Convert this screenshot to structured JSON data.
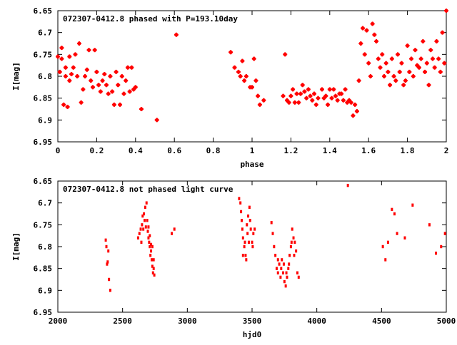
{
  "chart_data": [
    {
      "type": "scatter",
      "title": "072307-0412.8 phased with P=193.10day",
      "xlabel": "phase",
      "ylabel": "I[mag]",
      "xlim": [
        0,
        2
      ],
      "ylim": [
        6.65,
        6.95
      ],
      "y_inverted": true,
      "grid": false,
      "marker_color": "#ff0000",
      "x_ticks": [
        0,
        0.2,
        0.4,
        0.6,
        0.8,
        1,
        1.2,
        1.4,
        1.6,
        1.8,
        2
      ],
      "x_tick_labels": [
        "0",
        "0.2",
        "0.4",
        "0.6",
        "0.8",
        "1",
        "1.2",
        "1.4",
        "1.6",
        "1.8",
        "2"
      ],
      "y_ticks": [
        6.65,
        6.7,
        6.75,
        6.8,
        6.85,
        6.9,
        6.95
      ],
      "y_tick_labels": [
        "6.65",
        "6.7",
        "6.75",
        "6.8",
        "6.85",
        "6.9",
        "6.95"
      ],
      "points": [
        [
          0.0,
          6.755
        ],
        [
          0.01,
          6.79
        ],
        [
          0.02,
          6.76
        ],
        [
          0.02,
          6.735
        ],
        [
          0.03,
          6.865
        ],
        [
          0.04,
          6.8
        ],
        [
          0.04,
          6.78
        ],
        [
          0.05,
          6.87
        ],
        [
          0.06,
          6.81
        ],
        [
          0.06,
          6.755
        ],
        [
          0.07,
          6.795
        ],
        [
          0.08,
          6.78
        ],
        [
          0.09,
          6.75
        ],
        [
          0.1,
          6.8
        ],
        [
          0.11,
          6.725
        ],
        [
          0.12,
          6.86
        ],
        [
          0.13,
          6.83
        ],
        [
          0.14,
          6.8
        ],
        [
          0.15,
          6.785
        ],
        [
          0.16,
          6.74
        ],
        [
          0.17,
          6.81
        ],
        [
          0.18,
          6.825
        ],
        [
          0.19,
          6.74
        ],
        [
          0.2,
          6.79
        ],
        [
          0.21,
          6.82
        ],
        [
          0.22,
          6.835
        ],
        [
          0.23,
          6.81
        ],
        [
          0.24,
          6.795
        ],
        [
          0.25,
          6.82
        ],
        [
          0.26,
          6.84
        ],
        [
          0.27,
          6.8
        ],
        [
          0.28,
          6.835
        ],
        [
          0.29,
          6.865
        ],
        [
          0.3,
          6.79
        ],
        [
          0.31,
          6.82
        ],
        [
          0.32,
          6.865
        ],
        [
          0.33,
          6.8
        ],
        [
          0.34,
          6.84
        ],
        [
          0.35,
          6.81
        ],
        [
          0.36,
          6.78
        ],
        [
          0.37,
          6.835
        ],
        [
          0.38,
          6.78
        ],
        [
          0.39,
          6.83
        ],
        [
          0.4,
          6.825
        ],
        [
          0.43,
          6.875
        ],
        [
          0.51,
          6.9
        ],
        [
          0.61,
          6.705
        ],
        [
          0.89,
          6.745
        ],
        [
          0.91,
          6.78
        ],
        [
          0.93,
          6.79
        ],
        [
          0.94,
          6.8
        ],
        [
          0.95,
          6.765
        ],
        [
          0.96,
          6.81
        ],
        [
          0.97,
          6.8
        ],
        [
          0.99,
          6.825
        ],
        [
          1.0,
          6.825
        ],
        [
          1.01,
          6.76
        ],
        [
          1.02,
          6.81
        ],
        [
          1.03,
          6.845
        ],
        [
          1.04,
          6.865
        ],
        [
          1.06,
          6.855
        ],
        [
          1.16,
          6.845
        ],
        [
          1.17,
          6.75
        ],
        [
          1.18,
          6.855
        ],
        [
          1.19,
          6.86
        ],
        [
          1.2,
          6.845
        ],
        [
          1.21,
          6.83
        ],
        [
          1.22,
          6.86
        ],
        [
          1.23,
          6.84
        ],
        [
          1.24,
          6.86
        ],
        [
          1.25,
          6.84
        ],
        [
          1.26,
          6.82
        ],
        [
          1.27,
          6.835
        ],
        [
          1.28,
          6.85
        ],
        [
          1.29,
          6.83
        ],
        [
          1.3,
          6.845
        ],
        [
          1.31,
          6.855
        ],
        [
          1.32,
          6.84
        ],
        [
          1.33,
          6.865
        ],
        [
          1.34,
          6.85
        ],
        [
          1.36,
          6.83
        ],
        [
          1.37,
          6.85
        ],
        [
          1.38,
          6.845
        ],
        [
          1.39,
          6.865
        ],
        [
          1.4,
          6.83
        ],
        [
          1.41,
          6.85
        ],
        [
          1.42,
          6.83
        ],
        [
          1.43,
          6.845
        ],
        [
          1.44,
          6.855
        ],
        [
          1.45,
          6.84
        ],
        [
          1.46,
          6.84
        ],
        [
          1.47,
          6.855
        ],
        [
          1.48,
          6.83
        ],
        [
          1.49,
          6.86
        ],
        [
          1.5,
          6.855
        ],
        [
          1.51,
          6.86
        ],
        [
          1.52,
          6.89
        ],
        [
          1.53,
          6.865
        ],
        [
          1.54,
          6.88
        ],
        [
          1.55,
          6.81
        ],
        [
          1.56,
          6.725
        ],
        [
          1.57,
          6.69
        ],
        [
          1.58,
          6.75
        ],
        [
          1.59,
          6.695
        ],
        [
          1.6,
          6.77
        ],
        [
          1.61,
          6.8
        ],
        [
          1.62,
          6.68
        ],
        [
          1.63,
          6.705
        ],
        [
          1.64,
          6.72
        ],
        [
          1.65,
          6.76
        ],
        [
          1.66,
          6.78
        ],
        [
          1.67,
          6.75
        ],
        [
          1.68,
          6.8
        ],
        [
          1.69,
          6.77
        ],
        [
          1.7,
          6.79
        ],
        [
          1.71,
          6.82
        ],
        [
          1.72,
          6.76
        ],
        [
          1.73,
          6.8
        ],
        [
          1.74,
          6.81
        ],
        [
          1.75,
          6.75
        ],
        [
          1.76,
          6.79
        ],
        [
          1.77,
          6.77
        ],
        [
          1.78,
          6.82
        ],
        [
          1.79,
          6.81
        ],
        [
          1.8,
          6.73
        ],
        [
          1.81,
          6.79
        ],
        [
          1.82,
          6.76
        ],
        [
          1.83,
          6.8
        ],
        [
          1.84,
          6.74
        ],
        [
          1.85,
          6.775
        ],
        [
          1.86,
          6.78
        ],
        [
          1.87,
          6.76
        ],
        [
          1.88,
          6.72
        ],
        [
          1.89,
          6.79
        ],
        [
          1.9,
          6.77
        ],
        [
          1.91,
          6.82
        ],
        [
          1.92,
          6.74
        ],
        [
          1.93,
          6.76
        ],
        [
          1.94,
          6.78
        ],
        [
          1.95,
          6.72
        ],
        [
          1.96,
          6.76
        ],
        [
          1.97,
          6.79
        ],
        [
          1.98,
          6.7
        ],
        [
          1.99,
          6.77
        ],
        [
          2.0,
          6.65
        ]
      ]
    },
    {
      "type": "scatter",
      "title": "072307-0412.8 not phased light curve",
      "xlabel": "hjd0",
      "ylabel": "I[mag]",
      "xlim": [
        2000,
        5000
      ],
      "ylim": [
        6.65,
        6.95
      ],
      "y_inverted": true,
      "grid": false,
      "marker_color": "#ff0000",
      "x_ticks": [
        2000,
        2500,
        3000,
        3500,
        4000,
        4500,
        5000
      ],
      "x_tick_labels": [
        "2000",
        "2500",
        "3000",
        "3500",
        "4000",
        "4500",
        "5000"
      ],
      "y_ticks": [
        6.65,
        6.7,
        6.75,
        6.8,
        6.85,
        6.9,
        6.95
      ],
      "y_tick_labels": [
        "6.65",
        "6.7",
        "6.75",
        "6.8",
        "6.85",
        "6.9",
        "6.95"
      ],
      "points": [
        [
          2370,
          6.785
        ],
        [
          2375,
          6.8
        ],
        [
          2380,
          6.84
        ],
        [
          2385,
          6.835
        ],
        [
          2390,
          6.81
        ],
        [
          2395,
          6.875
        ],
        [
          2405,
          6.9
        ],
        [
          2620,
          6.78
        ],
        [
          2630,
          6.77
        ],
        [
          2640,
          6.76
        ],
        [
          2645,
          6.79
        ],
        [
          2650,
          6.75
        ],
        [
          2655,
          6.73
        ],
        [
          2660,
          6.76
        ],
        [
          2665,
          6.725
        ],
        [
          2670,
          6.74
        ],
        [
          2675,
          6.71
        ],
        [
          2680,
          6.755
        ],
        [
          2685,
          6.7
        ],
        [
          2690,
          6.74
        ],
        [
          2695,
          6.765
        ],
        [
          2700,
          6.78
        ],
        [
          2705,
          6.79
        ],
        [
          2710,
          6.8
        ],
        [
          2715,
          6.82
        ],
        [
          2720,
          6.81
        ],
        [
          2725,
          6.83
        ],
        [
          2730,
          6.845
        ],
        [
          2735,
          6.86
        ],
        [
          2740,
          6.85
        ],
        [
          2745,
          6.865
        ],
        [
          2700,
          6.755
        ],
        [
          2710,
          6.775
        ],
        [
          2720,
          6.795
        ],
        [
          2730,
          6.8
        ],
        [
          2740,
          6.83
        ],
        [
          2880,
          6.77
        ],
        [
          2900,
          6.76
        ],
        [
          3400,
          6.69
        ],
        [
          3410,
          6.7
        ],
        [
          3415,
          6.72
        ],
        [
          3420,
          6.74
        ],
        [
          3425,
          6.76
        ],
        [
          3430,
          6.78
        ],
        [
          3440,
          6.8
        ],
        [
          3450,
          6.82
        ],
        [
          3460,
          6.75
        ],
        [
          3470,
          6.73
        ],
        [
          3480,
          6.71
        ],
        [
          3490,
          6.76
        ],
        [
          3500,
          6.79
        ],
        [
          3505,
          6.8
        ],
        [
          3510,
          6.77
        ],
        [
          3520,
          6.76
        ],
        [
          3430,
          6.82
        ],
        [
          3445,
          6.79
        ],
        [
          3455,
          6.83
        ],
        [
          3465,
          6.77
        ],
        [
          3475,
          6.79
        ],
        [
          3485,
          6.74
        ],
        [
          3650,
          6.745
        ],
        [
          3660,
          6.77
        ],
        [
          3670,
          6.8
        ],
        [
          3680,
          6.82
        ],
        [
          3690,
          6.85
        ],
        [
          3700,
          6.86
        ],
        [
          3710,
          6.84
        ],
        [
          3720,
          6.87
        ],
        [
          3730,
          6.83
        ],
        [
          3740,
          6.86
        ],
        [
          3750,
          6.88
        ],
        [
          3760,
          6.89
        ],
        [
          3770,
          6.87
        ],
        [
          3780,
          6.85
        ],
        [
          3790,
          6.82
        ],
        [
          3800,
          6.8
        ],
        [
          3810,
          6.76
        ],
        [
          3820,
          6.78
        ],
        [
          3830,
          6.79
        ],
        [
          3840,
          6.81
        ],
        [
          3850,
          6.86
        ],
        [
          3860,
          6.87
        ],
        [
          3700,
          6.83
        ],
        [
          3725,
          6.85
        ],
        [
          3745,
          6.84
        ],
        [
          3765,
          6.86
        ],
        [
          3785,
          6.84
        ],
        [
          3805,
          6.79
        ],
        [
          3825,
          6.82
        ],
        [
          4240,
          6.66
        ],
        [
          4510,
          6.8
        ],
        [
          4530,
          6.83
        ],
        [
          4550,
          6.79
        ],
        [
          4580,
          6.715
        ],
        [
          4600,
          6.725
        ],
        [
          4620,
          6.77
        ],
        [
          4680,
          6.78
        ],
        [
          4740,
          6.705
        ],
        [
          4870,
          6.75
        ],
        [
          4920,
          6.815
        ],
        [
          4960,
          6.8
        ],
        [
          4990,
          6.77
        ]
      ]
    }
  ]
}
